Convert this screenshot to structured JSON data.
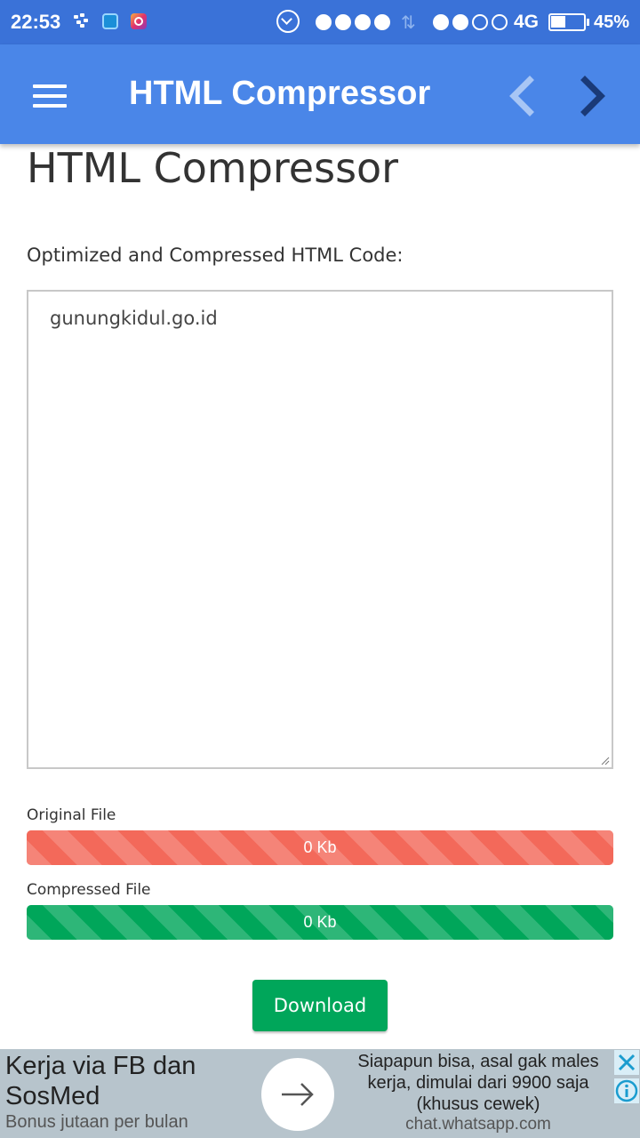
{
  "status_bar": {
    "time": "22:53",
    "network": "4G",
    "battery_percent": "45%",
    "battery_level": 0.45,
    "notification_icons": [
      "bbm-icon",
      "mi-icon",
      "instagram-icon"
    ]
  },
  "app_bar": {
    "title": "HTML Compressor",
    "back_color": "#a8c6f5",
    "forward_color": "#1a3a78"
  },
  "page": {
    "title": "HTML Compressor",
    "output_label": "Optimized and Compressed HTML Code:",
    "output_value": "gunungkidul.go.id"
  },
  "stats": {
    "original": {
      "label": "Original File",
      "value": "0 Kb",
      "color": "#f3695a",
      "fill": 1.0
    },
    "compressed": {
      "label": "Compressed File",
      "value": "0 Kb",
      "color": "#00a65a",
      "fill": 1.0
    }
  },
  "actions": {
    "download_label": "Download"
  },
  "ad": {
    "title": "Kerja via FB dan SosMed",
    "subtitle": "Bonus jutaan per bulan",
    "body": "Siapapun bisa, asal gak males kerja, dimulai dari 9900 saja (khusus cewek)",
    "url": "chat.whatsapp.com"
  }
}
